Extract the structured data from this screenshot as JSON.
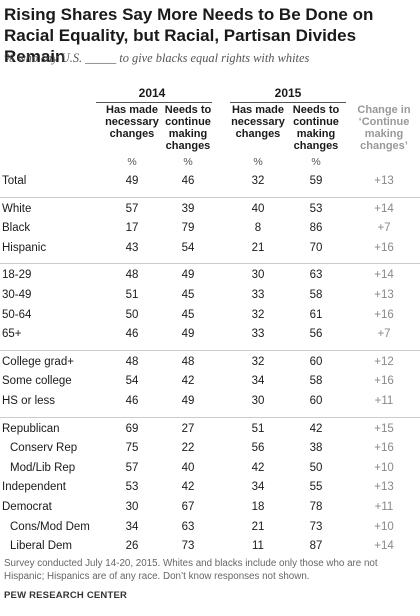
{
  "title": "Rising Shares Say More Needs to Be Done on Racial Equality, but Racial, Partisan Divides Remain",
  "subtitle": "% who say U.S. _____ to give blacks equal rights with whites",
  "years": [
    "2014",
    "2015"
  ],
  "column_headers": {
    "made": "Has made\nnecessary\nchanges",
    "continue": "Needs to\ncontinue\nmaking\nchanges",
    "change": "Change in\n‘Continue\nmaking\nchanges’"
  },
  "pct_symbol": "%",
  "note": "Survey conducted July 14-20, 2015. Whites and blacks include only those who are not Hispanic; Hispanics are of any race. Don’t know responses not shown.",
  "source": "PEW RESEARCH CENTER",
  "chart_data": {
    "type": "table",
    "columns": [
      "2014 Has made necessary changes",
      "2014 Needs to continue making changes",
      "2015 Has made necessary changes",
      "2015 Needs to continue making changes",
      "Change in ‘Continue making changes’"
    ],
    "rows": [
      {
        "label": "Total",
        "indent": false,
        "v": [
          "49",
          "46",
          "32",
          "59",
          "+13"
        ]
      },
      {
        "label": "White",
        "indent": false,
        "v": [
          "57",
          "39",
          "40",
          "53",
          "+14"
        ]
      },
      {
        "label": "Black",
        "indent": false,
        "v": [
          "17",
          "79",
          "8",
          "86",
          "+7"
        ]
      },
      {
        "label": "Hispanic",
        "indent": false,
        "v": [
          "43",
          "54",
          "21",
          "70",
          "+16"
        ]
      },
      {
        "label": "18-29",
        "indent": false,
        "v": [
          "48",
          "49",
          "30",
          "63",
          "+14"
        ]
      },
      {
        "label": "30-49",
        "indent": false,
        "v": [
          "51",
          "45",
          "33",
          "58",
          "+13"
        ]
      },
      {
        "label": "50-64",
        "indent": false,
        "v": [
          "50",
          "45",
          "32",
          "61",
          "+16"
        ]
      },
      {
        "label": "65+",
        "indent": false,
        "v": [
          "46",
          "49",
          "33",
          "56",
          "+7"
        ]
      },
      {
        "label": "College grad+",
        "indent": false,
        "v": [
          "48",
          "48",
          "32",
          "60",
          "+12"
        ]
      },
      {
        "label": "Some college",
        "indent": false,
        "v": [
          "54",
          "42",
          "34",
          "58",
          "+16"
        ]
      },
      {
        "label": "HS or less",
        "indent": false,
        "v": [
          "46",
          "49",
          "30",
          "60",
          "+11"
        ]
      },
      {
        "label": "Republican",
        "indent": false,
        "v": [
          "69",
          "27",
          "51",
          "42",
          "+15"
        ]
      },
      {
        "label": "Conserv Rep",
        "indent": true,
        "v": [
          "75",
          "22",
          "56",
          "38",
          "+16"
        ]
      },
      {
        "label": "Mod/Lib Rep",
        "indent": true,
        "v": [
          "57",
          "40",
          "42",
          "50",
          "+10"
        ]
      },
      {
        "label": "Independent",
        "indent": false,
        "v": [
          "53",
          "42",
          "34",
          "55",
          "+13"
        ]
      },
      {
        "label": "Democrat",
        "indent": false,
        "v": [
          "30",
          "67",
          "18",
          "78",
          "+11"
        ]
      },
      {
        "label": "Cons/Mod Dem",
        "indent": true,
        "v": [
          "34",
          "63",
          "21",
          "73",
          "+10"
        ]
      },
      {
        "label": "Liberal Dem",
        "indent": true,
        "v": [
          "26",
          "73",
          "11",
          "87",
          "+14"
        ]
      }
    ]
  }
}
